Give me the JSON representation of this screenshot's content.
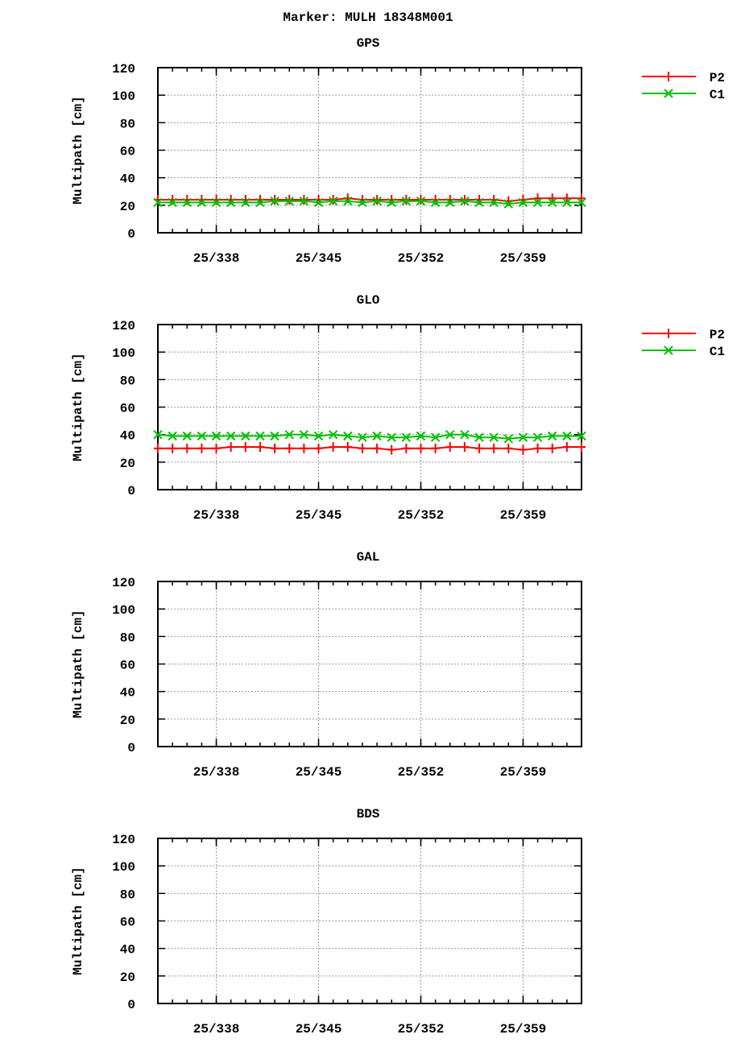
{
  "title": "Marker: MULH 18348M001",
  "chart_data": [
    {
      "type": "line",
      "title": "GPS",
      "ylabel": "Multipath [cm]",
      "ylim": [
        0,
        120
      ],
      "yticks": [
        "0",
        "20",
        "40",
        "60",
        "80",
        "100",
        "120"
      ],
      "xlim": [
        334,
        363
      ],
      "xticks": [
        {
          "value": 338,
          "label": "25/338"
        },
        {
          "value": 345,
          "label": "25/345"
        },
        {
          "value": 352,
          "label": "25/352"
        },
        {
          "value": 359,
          "label": "25/359"
        }
      ],
      "grid": true,
      "legend": "top-right, outside",
      "x": [
        334,
        335,
        336,
        337,
        338,
        339,
        340,
        341,
        342,
        343,
        344,
        345,
        346,
        347,
        348,
        349,
        350,
        351,
        352,
        353,
        354,
        355,
        356,
        357,
        358,
        359,
        360,
        361,
        362,
        363
      ],
      "series": [
        {
          "name": "P2",
          "color": "#ff0000",
          "marker": "plus",
          "values": [
            24,
            24,
            24,
            24,
            24,
            24,
            24,
            24,
            24,
            24,
            24,
            24,
            24,
            25,
            24,
            24,
            24,
            24,
            24,
            24,
            24,
            24,
            24,
            24,
            23,
            24,
            25,
            25,
            25,
            25
          ]
        },
        {
          "name": "C1",
          "color": "#00c000",
          "marker": "cross",
          "values": [
            22,
            22,
            22,
            22,
            22,
            22,
            22,
            22,
            23,
            23,
            23,
            22,
            23,
            23,
            22,
            23,
            22,
            23,
            23,
            22,
            22,
            23,
            22,
            22,
            21,
            22,
            22,
            22,
            22,
            22
          ]
        }
      ]
    },
    {
      "type": "line",
      "title": "GLO",
      "ylabel": "Multipath [cm]",
      "ylim": [
        0,
        120
      ],
      "yticks": [
        "0",
        "20",
        "40",
        "60",
        "80",
        "100",
        "120"
      ],
      "xlim": [
        334,
        363
      ],
      "xticks": [
        {
          "value": 338,
          "label": "25/338"
        },
        {
          "value": 345,
          "label": "25/345"
        },
        {
          "value": 352,
          "label": "25/352"
        },
        {
          "value": 359,
          "label": "25/359"
        }
      ],
      "grid": true,
      "legend": "top-right, outside",
      "x": [
        334,
        335,
        336,
        337,
        338,
        339,
        340,
        341,
        342,
        343,
        344,
        345,
        346,
        347,
        348,
        349,
        350,
        351,
        352,
        353,
        354,
        355,
        356,
        357,
        358,
        359,
        360,
        361,
        362,
        363
      ],
      "series": [
        {
          "name": "P2",
          "color": "#ff0000",
          "marker": "plus",
          "values": [
            30,
            30,
            30,
            30,
            30,
            31,
            31,
            31,
            30,
            30,
            30,
            30,
            31,
            31,
            30,
            30,
            29,
            30,
            30,
            30,
            31,
            31,
            30,
            30,
            30,
            29,
            30,
            30,
            31,
            31
          ]
        },
        {
          "name": "C1",
          "color": "#00c000",
          "marker": "cross",
          "values": [
            40,
            39,
            39,
            39,
            39,
            39,
            39,
            39,
            39,
            40,
            40,
            39,
            40,
            39,
            38,
            39,
            38,
            38,
            39,
            38,
            40,
            40,
            38,
            38,
            37,
            38,
            38,
            39,
            39,
            39
          ]
        }
      ]
    },
    {
      "type": "line",
      "title": "GAL",
      "ylabel": "Multipath [cm]",
      "ylim": [
        0,
        120
      ],
      "yticks": [
        "0",
        "20",
        "40",
        "60",
        "80",
        "100",
        "120"
      ],
      "xlim": [
        334,
        363
      ],
      "xticks": [
        {
          "value": 338,
          "label": "25/338"
        },
        {
          "value": 345,
          "label": "25/345"
        },
        {
          "value": 352,
          "label": "25/352"
        },
        {
          "value": 359,
          "label": "25/359"
        }
      ],
      "grid": true,
      "x": [],
      "series": []
    },
    {
      "type": "line",
      "title": "BDS",
      "ylabel": "Multipath [cm]",
      "ylim": [
        0,
        120
      ],
      "yticks": [
        "0",
        "20",
        "40",
        "60",
        "80",
        "100",
        "120"
      ],
      "xlim": [
        334,
        363
      ],
      "xticks": [
        {
          "value": 338,
          "label": "25/338"
        },
        {
          "value": 345,
          "label": "25/345"
        },
        {
          "value": 352,
          "label": "25/352"
        },
        {
          "value": 359,
          "label": "25/359"
        }
      ],
      "grid": true,
      "x": [],
      "series": []
    }
  ]
}
